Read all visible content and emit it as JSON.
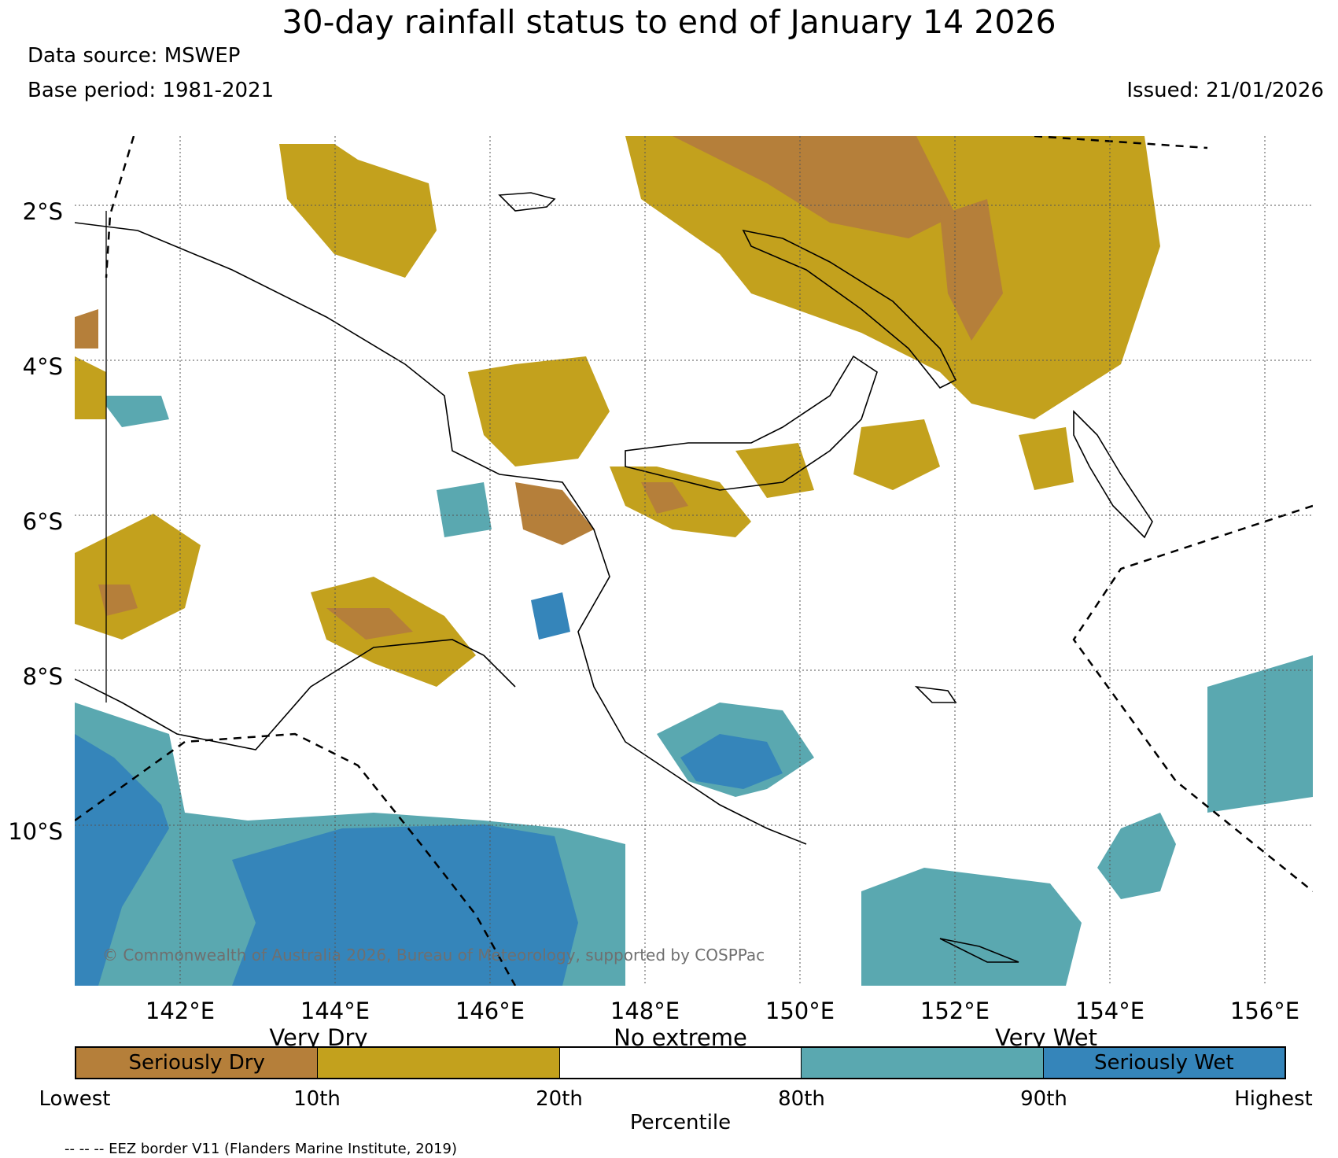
{
  "title": "30-day rainfall status to end of January 14 2026",
  "data_source": "Data source: MSWEP",
  "base_period": "Base period: 1981-2021",
  "issued": "Issued: 21/01/2026",
  "copyright": "© Commonwealth of Australia 2026, Bureau of Meteorology, supported by COSPPac",
  "lat_labels": [
    "2°S",
    "4°S",
    "6°S",
    "8°S",
    "10°S"
  ],
  "lon_labels": [
    "142°E",
    "144°E",
    "146°E",
    "148°E",
    "150°E",
    "152°E",
    "154°E",
    "156°E"
  ],
  "legend": {
    "categories": [
      "Very Dry",
      "No extreme",
      "Very Wet"
    ],
    "segments": [
      {
        "label": "Seriously Dry",
        "color": "#b57f3a"
      },
      {
        "label": "",
        "color": "#c3a11d"
      },
      {
        "label": "",
        "color": "#ffffff"
      },
      {
        "label": "",
        "color": "#5aa8b0"
      },
      {
        "label": "Seriously Wet",
        "color": "#3585ba"
      }
    ],
    "ticks": [
      "Lowest",
      "10th",
      "20th",
      "80th",
      "90th",
      "Highest"
    ],
    "axis_label": "Percentile"
  },
  "eez_note": "-- -- -- EEZ border V11 (Flanders Marine Institute, 2019)",
  "colors": {
    "seriously_dry": "#b57f3a",
    "very_dry": "#c3a11d",
    "very_wet": "#5aa8b0",
    "seriously_wet": "#3585ba"
  }
}
